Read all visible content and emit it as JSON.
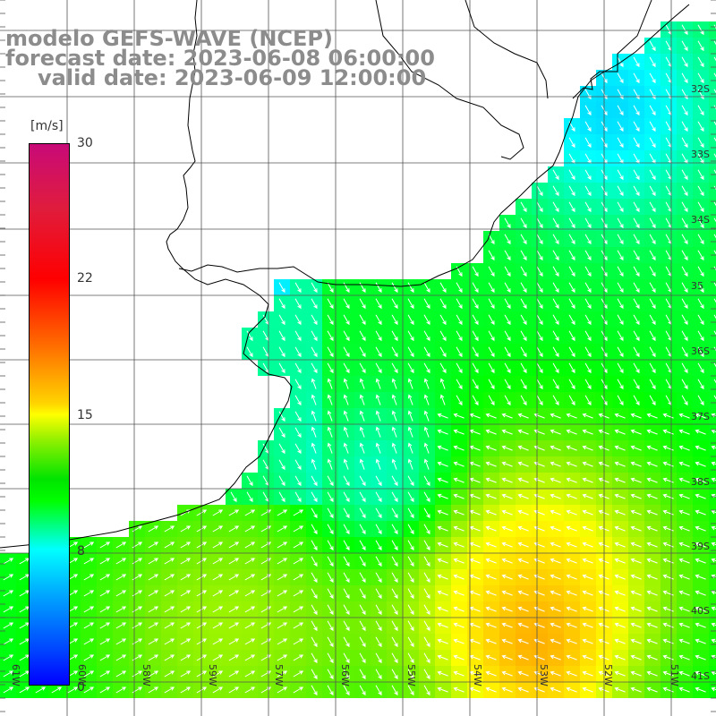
{
  "title": {
    "line1": "modelo GEFS-WAVE (NCEP)",
    "line2": "forecast date: 2023-06-08 06:00:00",
    "line3": "valid date: 2023-06-09 12:00:00"
  },
  "colorbar": {
    "unit": "[m/s]",
    "ticks": [
      "30",
      "22",
      "15",
      "8",
      "0"
    ],
    "colors": [
      "#c80a78",
      "#ff0000",
      "#ffff00",
      "#00ff00",
      "#00ffff",
      "#0000ff"
    ]
  },
  "lat_labels": [
    "32S",
    "33S",
    "34S",
    "35",
    "36S",
    "37S",
    "38S",
    "39S",
    "40S",
    "41S"
  ],
  "lon_labels": [
    "61W",
    "60W",
    "59W",
    "58W",
    "57W",
    "56W",
    "55W",
    "54W",
    "53W",
    "52W",
    "51W"
  ]
}
